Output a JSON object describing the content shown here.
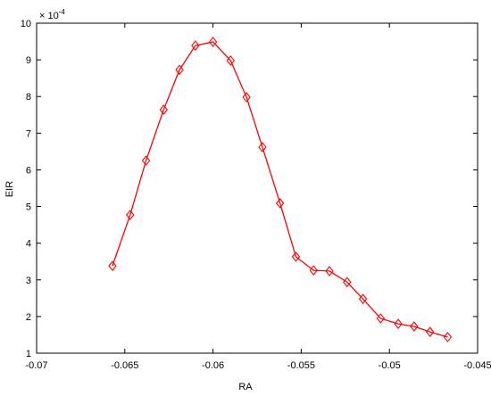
{
  "chart_data": {
    "type": "line",
    "x_label": "RA",
    "y_label": "EIR",
    "y_multiplier": {
      "base": "× 10",
      "exponent": "-4"
    },
    "x": [
      -0.0657,
      -0.0647,
      -0.0638,
      -0.0628,
      -0.0619,
      -0.061,
      -0.06,
      -0.059,
      -0.0581,
      -0.0572,
      -0.0562,
      -0.0553,
      -0.0543,
      -0.0534,
      -0.0524,
      -0.0515,
      -0.0505,
      -0.0495,
      -0.0486,
      -0.0477,
      -0.0467
    ],
    "values": [
      3.38,
      4.77,
      6.25,
      7.64,
      8.73,
      9.39,
      9.49,
      8.98,
      7.98,
      6.62,
      5.09,
      3.63,
      3.26,
      3.24,
      2.94,
      2.48,
      1.95,
      1.8,
      1.73,
      1.58,
      1.44
    ],
    "color": "#ff0000",
    "marker": "diamond",
    "xlim": [
      -0.07,
      -0.045
    ],
    "xticks": [
      -0.07,
      -0.065,
      -0.06,
      -0.055,
      -0.05,
      -0.045
    ],
    "ylim": [
      1,
      10
    ],
    "yticks": [
      1,
      2,
      3,
      4,
      5,
      6,
      7,
      8,
      9,
      10
    ],
    "grid": false
  }
}
